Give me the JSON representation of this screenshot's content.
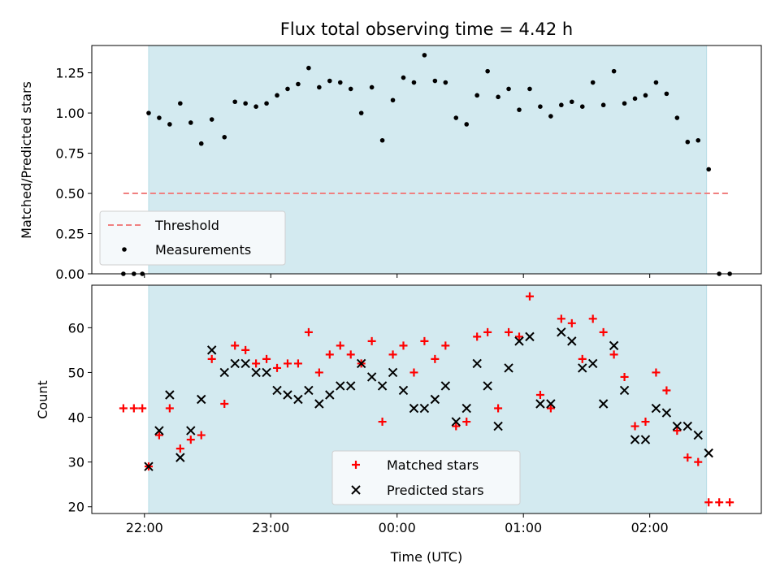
{
  "chart_data": [
    {
      "type": "scatter",
      "title": "Flux total observing time = 4.42 h",
      "xlabel": "",
      "ylabel": "Matched/Predicted stars",
      "ylim": [
        0,
        1.42
      ],
      "yticks": [
        "0.00",
        "0.25",
        "0.50",
        "0.75",
        "1.00",
        "1.25"
      ],
      "xlim": [
        "21:35",
        "02:53"
      ],
      "legend": {
        "placement": "lower-left",
        "entries": [
          "Threshold",
          "Measurements"
        ]
      },
      "shaded_interval": [
        "22:02",
        "02:27"
      ],
      "threshold": {
        "name": "Threshold",
        "value": 0.5,
        "x_range": [
          "21:50",
          "02:38"
        ],
        "color": "#f08080"
      },
      "series": [
        {
          "name": "Measurements",
          "color": "#000000",
          "x": [
            "21:50",
            "21:55",
            "21:59",
            "22:02",
            "22:07",
            "22:12",
            "22:17",
            "22:22",
            "22:27",
            "22:32",
            "22:38",
            "22:43",
            "22:48",
            "22:53",
            "22:58",
            "23:03",
            "23:08",
            "23:13",
            "23:18",
            "23:23",
            "23:28",
            "23:33",
            "23:38",
            "23:43",
            "23:48",
            "23:53",
            "23:58",
            "24:03",
            "24:08",
            "24:13",
            "24:18",
            "24:23",
            "24:28",
            "24:33",
            "24:38",
            "24:43",
            "24:48",
            "24:53",
            "24:58",
            "25:03",
            "25:08",
            "25:13",
            "25:18",
            "25:23",
            "25:28",
            "25:33",
            "25:38",
            "25:43",
            "25:48",
            "25:53",
            "25:58",
            "26:03",
            "26:08",
            "26:13",
            "26:18",
            "26:23",
            "26:28",
            "26:33",
            "26:38"
          ],
          "y": [
            0.0,
            0.0,
            0.0,
            1.0,
            0.97,
            0.93,
            1.06,
            0.94,
            0.81,
            0.96,
            0.85,
            1.07,
            1.06,
            1.04,
            1.06,
            1.11,
            1.15,
            1.18,
            1.28,
            1.16,
            1.2,
            1.19,
            1.15,
            1.0,
            1.16,
            0.83,
            1.08,
            1.22,
            1.19,
            1.36,
            1.2,
            1.19,
            0.97,
            0.93,
            1.11,
            1.26,
            1.1,
            1.15,
            1.02,
            1.15,
            1.04,
            0.98,
            1.05,
            1.07,
            1.04,
            1.19,
            1.05,
            1.26,
            1.06,
            1.09,
            1.11,
            1.19,
            1.12,
            0.97,
            0.82,
            0.83,
            0.65,
            0.0,
            0.0
          ]
        }
      ]
    },
    {
      "type": "scatter",
      "title": "",
      "xlabel": "Time (UTC)",
      "ylabel": "Count",
      "ylim": [
        18.5,
        69.5
      ],
      "yticks": [
        "20",
        "30",
        "40",
        "50",
        "60"
      ],
      "xlim": [
        "21:35",
        "02:53"
      ],
      "xticks": [
        "22:00",
        "23:00",
        "00:00",
        "01:00",
        "02:00"
      ],
      "legend": {
        "placement": "lower-center",
        "entries": [
          "Matched stars",
          "Predicted stars"
        ]
      },
      "shaded_interval": [
        "22:02",
        "02:27"
      ],
      "series": [
        {
          "name": "Matched stars",
          "marker": "plus",
          "color": "#ff0000",
          "x": [
            "21:50",
            "21:55",
            "21:59",
            "22:02",
            "22:07",
            "22:12",
            "22:17",
            "22:22",
            "22:27",
            "22:32",
            "22:38",
            "22:43",
            "22:48",
            "22:53",
            "22:58",
            "23:03",
            "23:08",
            "23:13",
            "23:18",
            "23:23",
            "23:28",
            "23:33",
            "23:38",
            "23:43",
            "23:48",
            "23:53",
            "23:58",
            "24:03",
            "24:08",
            "24:13",
            "24:18",
            "24:23",
            "24:28",
            "24:33",
            "24:38",
            "24:43",
            "24:48",
            "24:53",
            "24:58",
            "25:03",
            "25:08",
            "25:13",
            "25:18",
            "25:23",
            "25:28",
            "25:33",
            "25:38",
            "25:43",
            "25:48",
            "25:53",
            "25:58",
            "26:03",
            "26:08",
            "26:13",
            "26:18",
            "26:23",
            "26:28",
            "26:33",
            "26:38"
          ],
          "y": [
            42,
            42,
            42,
            29,
            36,
            42,
            33,
            35,
            36,
            53,
            43,
            56,
            55,
            52,
            53,
            51,
            52,
            52,
            59,
            50,
            54,
            56,
            54,
            52,
            57,
            39,
            54,
            56,
            50,
            57,
            53,
            56,
            38,
            39,
            58,
            59,
            42,
            59,
            58,
            67,
            45,
            42,
            62,
            61,
            53,
            62,
            59,
            54,
            49,
            38,
            39,
            50,
            46,
            37,
            31,
            30,
            21,
            21,
            21
          ]
        },
        {
          "name": "Predicted stars",
          "marker": "x",
          "color": "#000000",
          "x": [
            "22:02",
            "22:07",
            "22:12",
            "22:17",
            "22:22",
            "22:27",
            "22:32",
            "22:38",
            "22:43",
            "22:48",
            "22:53",
            "22:58",
            "23:03",
            "23:08",
            "23:13",
            "23:18",
            "23:23",
            "23:28",
            "23:33",
            "23:38",
            "23:43",
            "23:48",
            "23:53",
            "23:58",
            "24:03",
            "24:08",
            "24:13",
            "24:18",
            "24:23",
            "24:28",
            "24:33",
            "24:38",
            "24:43",
            "24:48",
            "24:53",
            "24:58",
            "25:03",
            "25:08",
            "25:13",
            "25:18",
            "25:23",
            "25:28",
            "25:33",
            "25:38",
            "25:43",
            "25:48",
            "25:53",
            "25:58",
            "26:03",
            "26:08",
            "26:13",
            "26:18",
            "26:23",
            "26:28"
          ],
          "y": [
            29,
            37,
            45,
            31,
            37,
            44,
            55,
            50,
            52,
            52,
            50,
            50,
            46,
            45,
            44,
            46,
            43,
            45,
            47,
            47,
            52,
            49,
            47,
            50,
            46,
            42,
            42,
            44,
            47,
            39,
            42,
            52,
            47,
            38,
            51,
            57,
            58,
            43,
            43,
            59,
            57,
            51,
            52,
            43,
            56,
            46,
            35,
            35,
            42,
            41,
            38,
            38,
            36,
            32
          ]
        }
      ]
    }
  ],
  "colors": {
    "shade": "#d3eaf0",
    "shade_edge": "#b8dde6",
    "legend_bg": "#f5f9fb",
    "legend_border": "#cfcfcf"
  }
}
